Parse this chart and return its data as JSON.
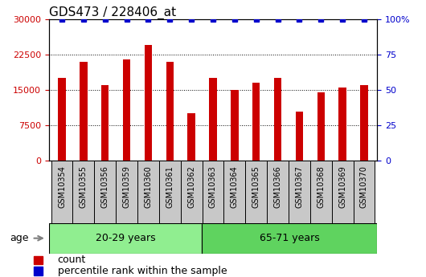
{
  "title": "GDS473 / 228406_at",
  "samples": [
    "GSM10354",
    "GSM10355",
    "GSM10356",
    "GSM10359",
    "GSM10360",
    "GSM10361",
    "GSM10362",
    "GSM10363",
    "GSM10364",
    "GSM10365",
    "GSM10366",
    "GSM10367",
    "GSM10368",
    "GSM10369",
    "GSM10370"
  ],
  "counts": [
    17500,
    21000,
    16000,
    21500,
    24500,
    21000,
    10000,
    17500,
    15000,
    16500,
    17500,
    10500,
    14500,
    15500,
    16000
  ],
  "percentile_ranks": [
    100,
    100,
    100,
    100,
    100,
    100,
    100,
    100,
    100,
    100,
    100,
    100,
    100,
    100,
    100
  ],
  "groups": [
    {
      "label": "20-29 years",
      "n": 7,
      "color": "#90EE90"
    },
    {
      "label": "65-71 years",
      "n": 8,
      "color": "#5FD35F"
    }
  ],
  "age_label": "age",
  "bar_color": "#CC0000",
  "dot_color": "#0000CC",
  "ylim_left": [
    0,
    30000
  ],
  "ylim_right": [
    0,
    100
  ],
  "yticks_left": [
    0,
    7500,
    15000,
    22500,
    30000
  ],
  "yticks_right": [
    0,
    25,
    50,
    75,
    100
  ],
  "ytick_labels_left": [
    "0",
    "7500",
    "15000",
    "22500",
    "30000"
  ],
  "ytick_labels_right": [
    "0",
    "25",
    "50",
    "75",
    "100%"
  ],
  "legend_count_label": "count",
  "legend_pct_label": "percentile rank within the sample",
  "bar_width": 0.35,
  "xtick_bg_color": "#C8C8C8",
  "plot_bg_color": "#FFFFFF",
  "title_fontsize": 11,
  "tick_fontsize": 8,
  "sample_fontsize": 7,
  "group_fontsize": 9,
  "legend_fontsize": 9
}
